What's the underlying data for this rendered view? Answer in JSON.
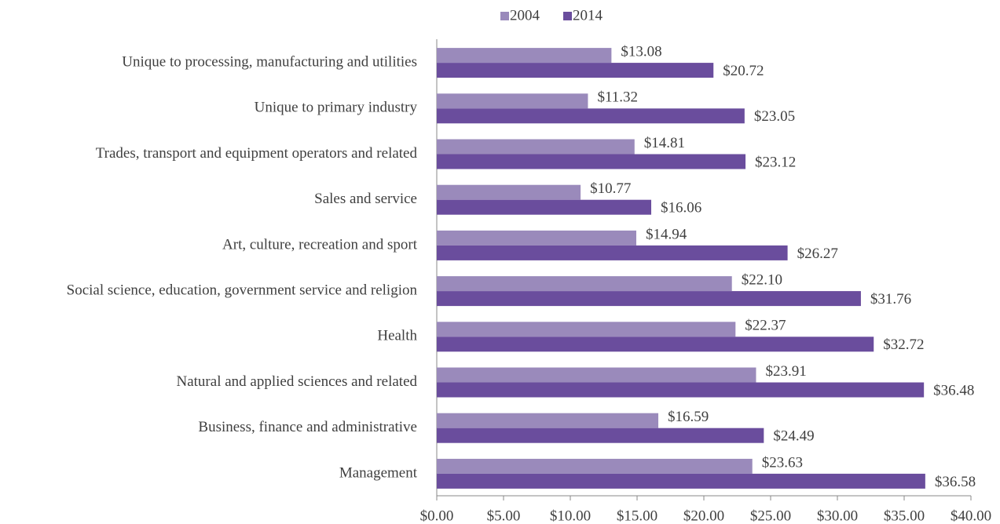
{
  "chart_data": {
    "type": "barh",
    "categories": [
      "Unique to processing, manufacturing and utilities",
      "Unique to primary industry",
      "Trades, transport and equipment operators and related",
      "Sales and service",
      "Art, culture, recreation and sport",
      "Social science, education, government service and religion",
      "Health",
      "Natural and applied sciences and related",
      "Business, finance and administrative",
      "Management"
    ],
    "series": [
      {
        "name": "2004",
        "color": "#9a8abb",
        "values": [
          13.08,
          11.32,
          14.81,
          10.77,
          14.94,
          22.1,
          22.37,
          23.91,
          16.59,
          23.63
        ],
        "value_labels": [
          "$13.08",
          "$11.32",
          "$14.81",
          "$10.77",
          "$14.94",
          "$22.10",
          "$22.37",
          "$23.91",
          "$16.59",
          "$23.63"
        ]
      },
      {
        "name": "2014",
        "color": "#6a4d9d",
        "values": [
          20.72,
          23.05,
          23.12,
          16.06,
          26.27,
          31.76,
          32.72,
          36.48,
          24.49,
          36.58
        ],
        "value_labels": [
          "$20.72",
          "$23.05",
          "$23.12",
          "$16.06",
          "$26.27",
          "$31.76",
          "$32.72",
          "$36.48",
          "$24.49",
          "$36.58"
        ]
      }
    ],
    "xlim": [
      0,
      40
    ],
    "xticks": [
      {
        "value": 0,
        "label": "$0.00"
      },
      {
        "value": 5,
        "label": "$5.00"
      },
      {
        "value": 10,
        "label": "$10.00"
      },
      {
        "value": 15,
        "label": "$15.00"
      },
      {
        "value": 20,
        "label": "$20.00"
      },
      {
        "value": 25,
        "label": "$25.00"
      },
      {
        "value": 30,
        "label": "$30.00"
      },
      {
        "value": 35,
        "label": "$35.00"
      },
      {
        "value": 40,
        "label": "$40.00"
      }
    ],
    "legend": "top"
  }
}
